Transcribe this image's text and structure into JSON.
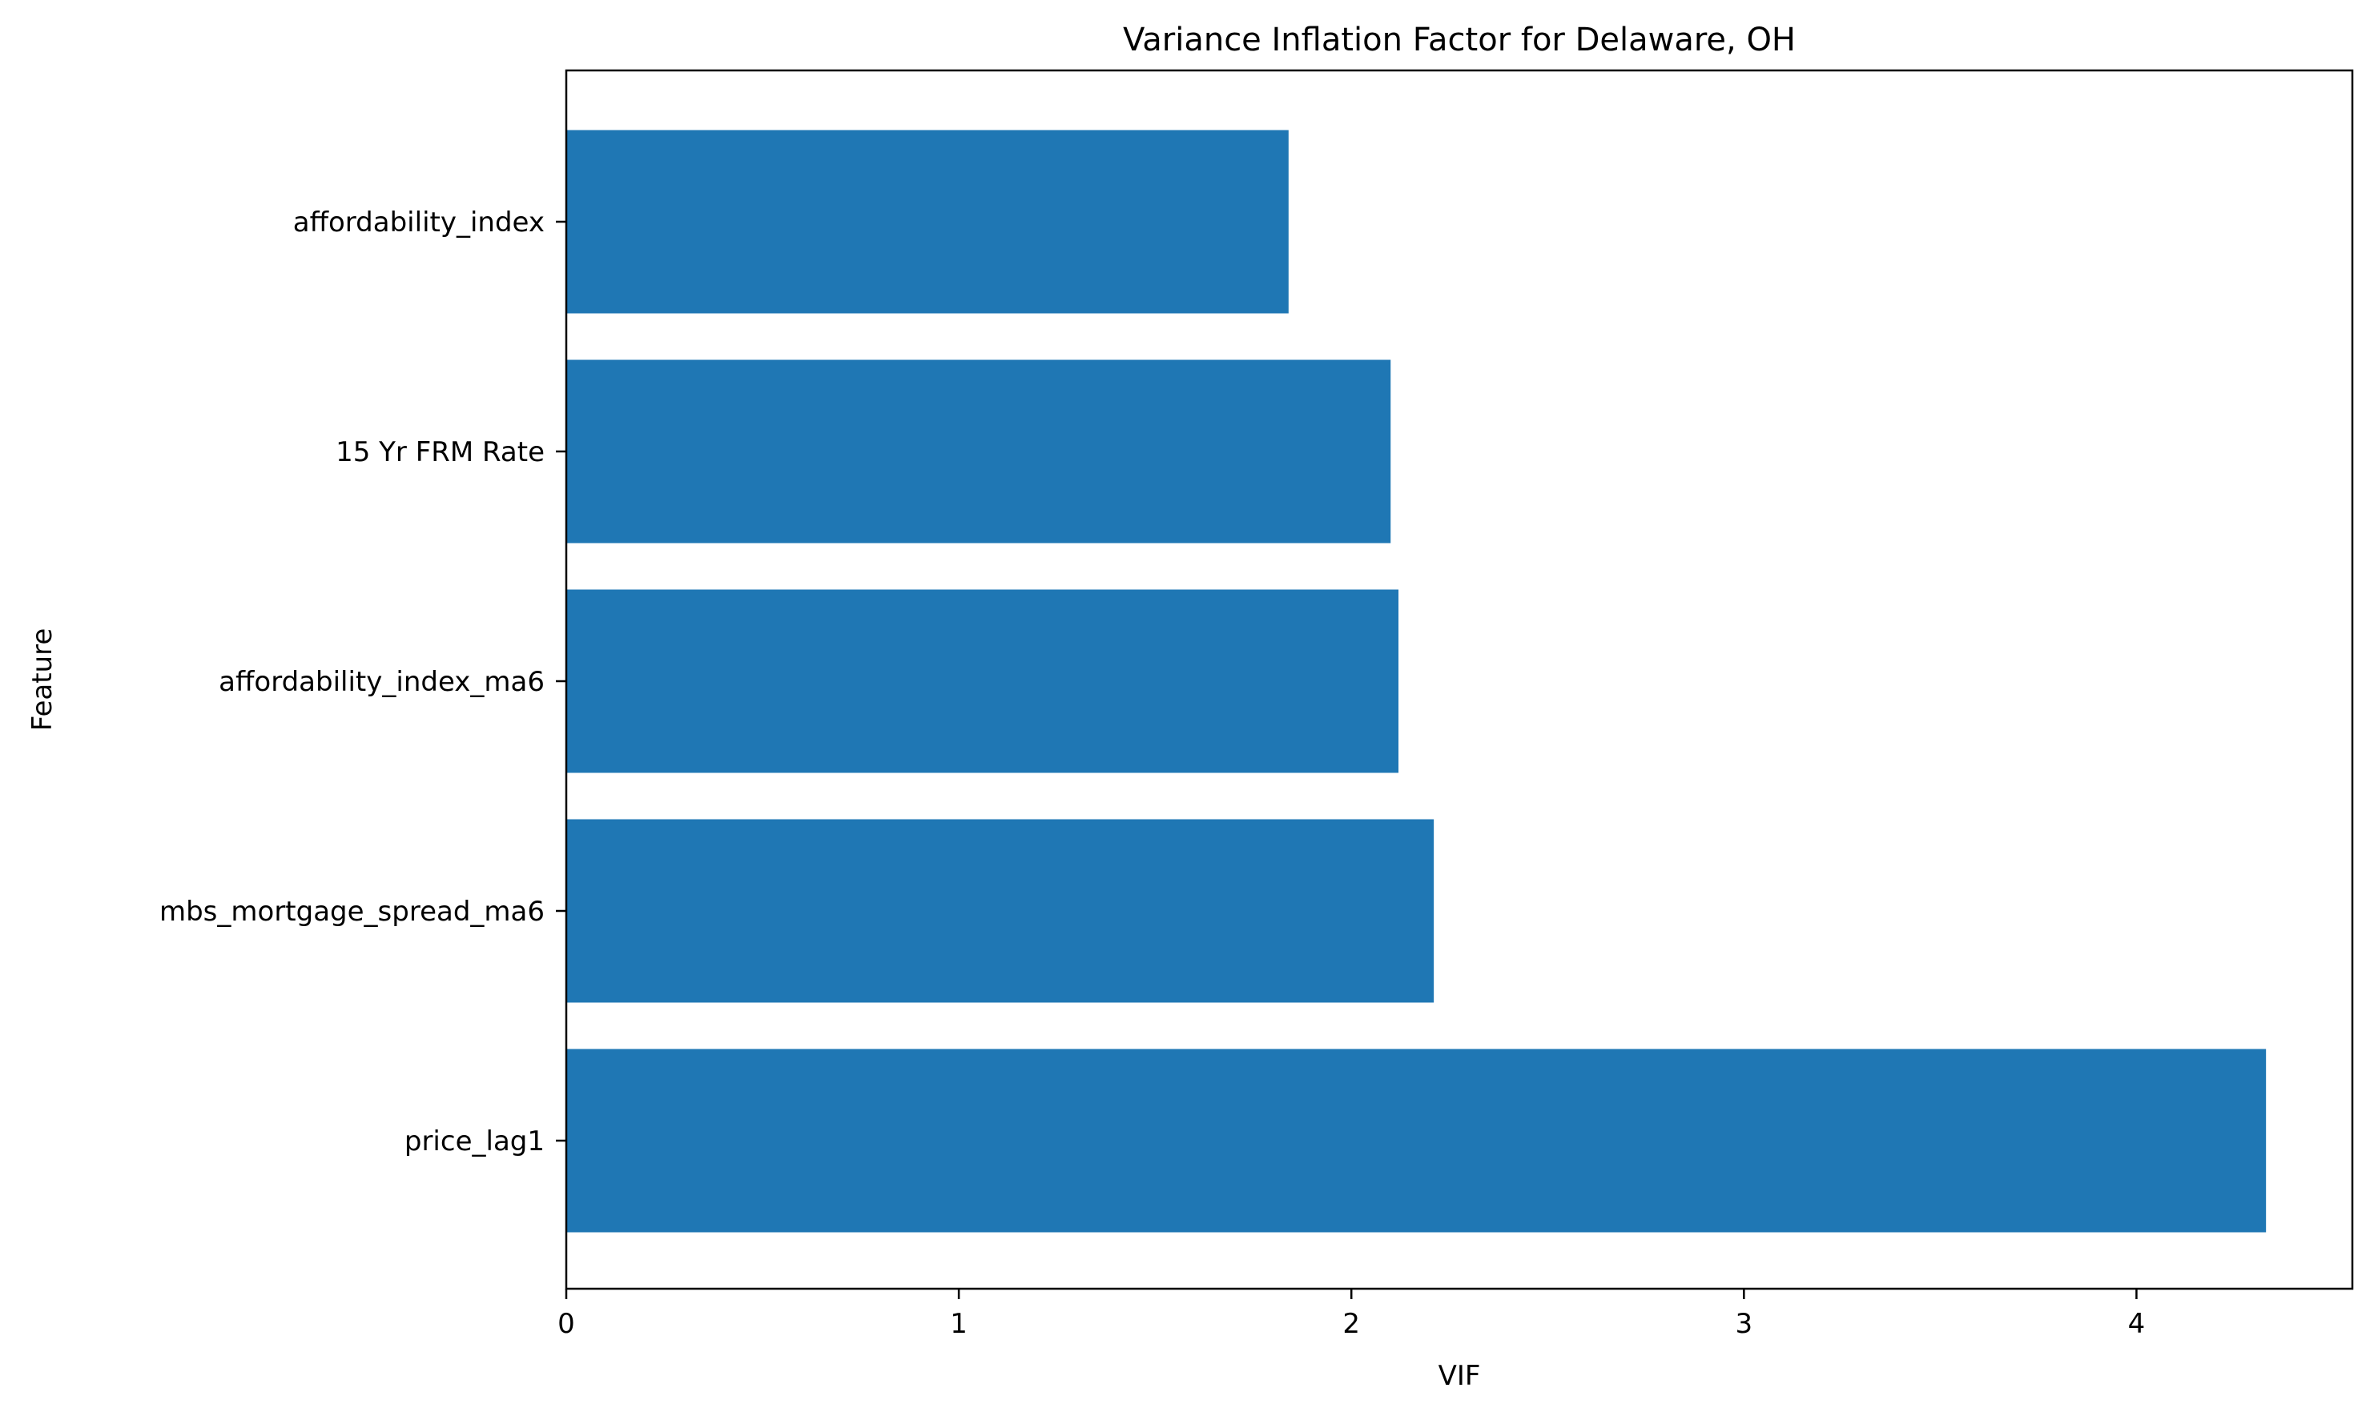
{
  "chart_data": {
    "type": "bar",
    "orientation": "horizontal",
    "title": "Variance Inflation Factor for Delaware, OH",
    "xlabel": "VIF",
    "ylabel": "Feature",
    "categories": [
      "affordability_index",
      "15 Yr FRM Rate",
      "affordability_index_ma6",
      "mbs_mortgage_spread_ma6",
      "price_lag1"
    ],
    "values": [
      1.84,
      2.1,
      2.12,
      2.21,
      4.33
    ],
    "xlim": [
      0,
      4.55
    ],
    "xticks": [
      0,
      1,
      2,
      3,
      4
    ],
    "grid": false,
    "legend": "none",
    "bar_color": "#1f77b4"
  }
}
